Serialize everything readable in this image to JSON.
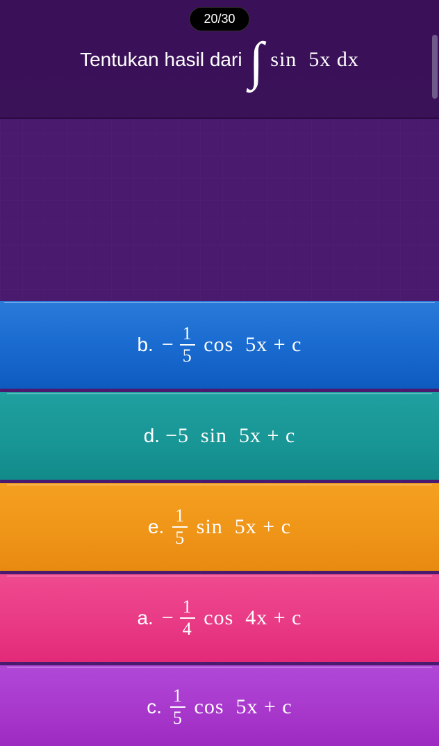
{
  "progress": {
    "label": "20/30"
  },
  "question": {
    "prompt_text": "Tentukan hasil dari",
    "integral_symbol": "∫",
    "integrand": "sin  5x dx"
  },
  "answers": [
    {
      "key": "b",
      "label": "b.",
      "prefix_minus": "−",
      "frac_num": "1",
      "frac_den": "5",
      "tail": " cos  5x + c",
      "type": "frac",
      "bg_gradient": [
        "#2a7ad9",
        "#0e5bc0"
      ]
    },
    {
      "key": "d",
      "label": "d.",
      "plain": "−5  sin  5x + c",
      "type": "plain",
      "bg_gradient": [
        "#20a0a0",
        "#128a8a"
      ]
    },
    {
      "key": "e",
      "label": "e.",
      "prefix_minus": "",
      "frac_num": "1",
      "frac_den": "5",
      "tail": " sin  5x + c",
      "type": "frac",
      "bg_gradient": [
        "#f5a020",
        "#e88a10"
      ]
    },
    {
      "key": "a",
      "label": "a.",
      "prefix_minus": "−",
      "frac_num": "1",
      "frac_den": "4",
      "tail": " cos  4x + c",
      "type": "frac",
      "bg_gradient": [
        "#ef4a90",
        "#e22a78"
      ]
    },
    {
      "key": "c",
      "label": "c.",
      "prefix_minus": "",
      "frac_num": "1",
      "frac_den": "5",
      "tail": " cos  5x + c",
      "type": "frac",
      "bg_gradient": [
        "#b048d8",
        "#9c28c0"
      ]
    }
  ],
  "colors": {
    "page_bg": "#4a1a6e",
    "question_bg": "#3a1258",
    "text": "#ffffff",
    "pill_bg": "#000000"
  }
}
